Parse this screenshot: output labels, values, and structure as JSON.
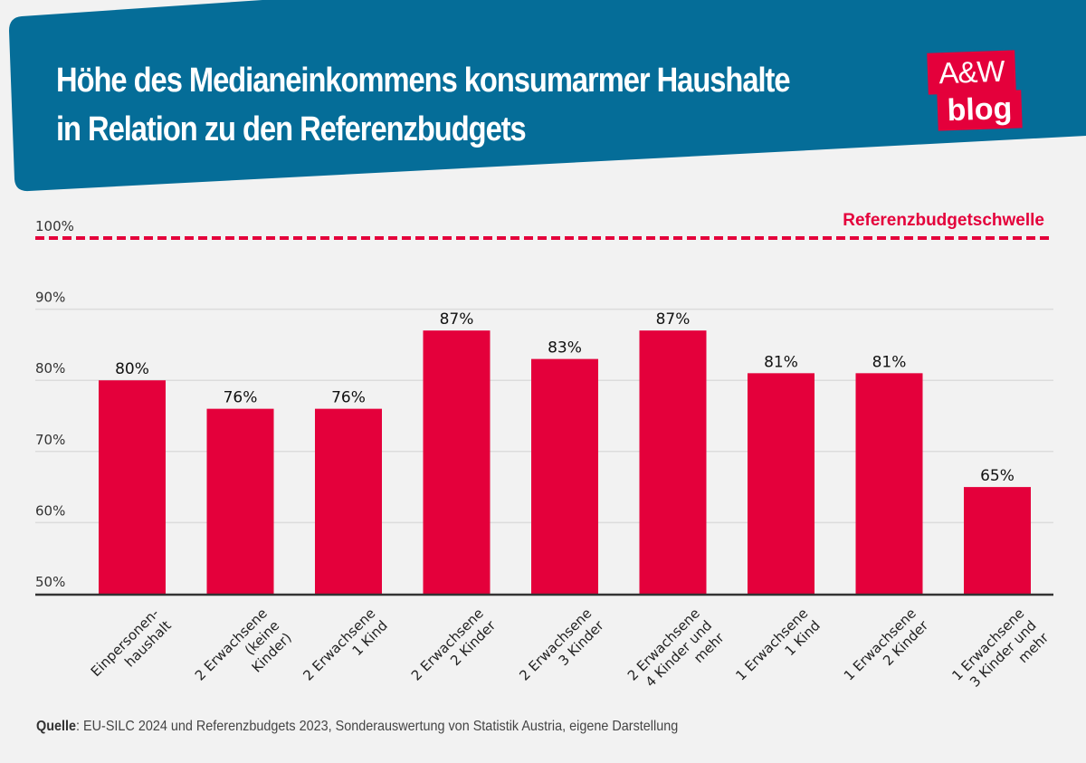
{
  "header": {
    "title_line1": "Höhe des Medianeinkommens konsumarmer Haushalte",
    "title_line2": "in Relation zu den Referenzbudgets",
    "background_color": "#056d98"
  },
  "logo": {
    "line1": "A&W",
    "line2": "blog",
    "color": "#e4003b"
  },
  "source": {
    "label": "Quelle",
    "text": ": EU-SILC 2024 und Referenzbudgets 2023, Sonderauswertung von Statistik Austria, eigene Darstellung"
  },
  "chart_data": {
    "type": "bar",
    "title": "Höhe des Medianeinkommens konsumarmer Haushalte in Relation zu den Referenzbudgets",
    "xlabel": "",
    "ylabel": "",
    "ylim": [
      50,
      100
    ],
    "yticks": [
      50,
      60,
      70,
      80,
      90,
      100
    ],
    "ytick_labels": [
      "50%",
      "60%",
      "70%",
      "80%",
      "90%",
      "100%"
    ],
    "grid": true,
    "bar_color": "#e4003b",
    "categories": [
      [
        "Einpersonen-",
        "haushalt"
      ],
      [
        "2 Erwachsene",
        "(keine",
        "Kinder)"
      ],
      [
        "2 Erwachsene",
        "1 Kind"
      ],
      [
        "2 Erwachsene",
        "2 Kinder"
      ],
      [
        "2 Erwachsene",
        "3 Kinder"
      ],
      [
        "2 Erwachsene",
        "4 Kinder und",
        "mehr"
      ],
      [
        "1 Erwachsene",
        "1 Kind"
      ],
      [
        "1 Erwachsene",
        "2 Kinder"
      ],
      [
        "1 Erwachsene",
        "3 Kinder und",
        "mehr"
      ]
    ],
    "values": [
      80,
      76,
      76,
      87,
      83,
      87,
      81,
      81,
      65
    ],
    "value_labels": [
      "80%",
      "76%",
      "76%",
      "87%",
      "83%",
      "87%",
      "81%",
      "81%",
      "65%"
    ],
    "reference_line": {
      "value": 100,
      "label": "Referenzbudgetschwelle",
      "style": "dashed",
      "color": "#e4003b"
    }
  }
}
